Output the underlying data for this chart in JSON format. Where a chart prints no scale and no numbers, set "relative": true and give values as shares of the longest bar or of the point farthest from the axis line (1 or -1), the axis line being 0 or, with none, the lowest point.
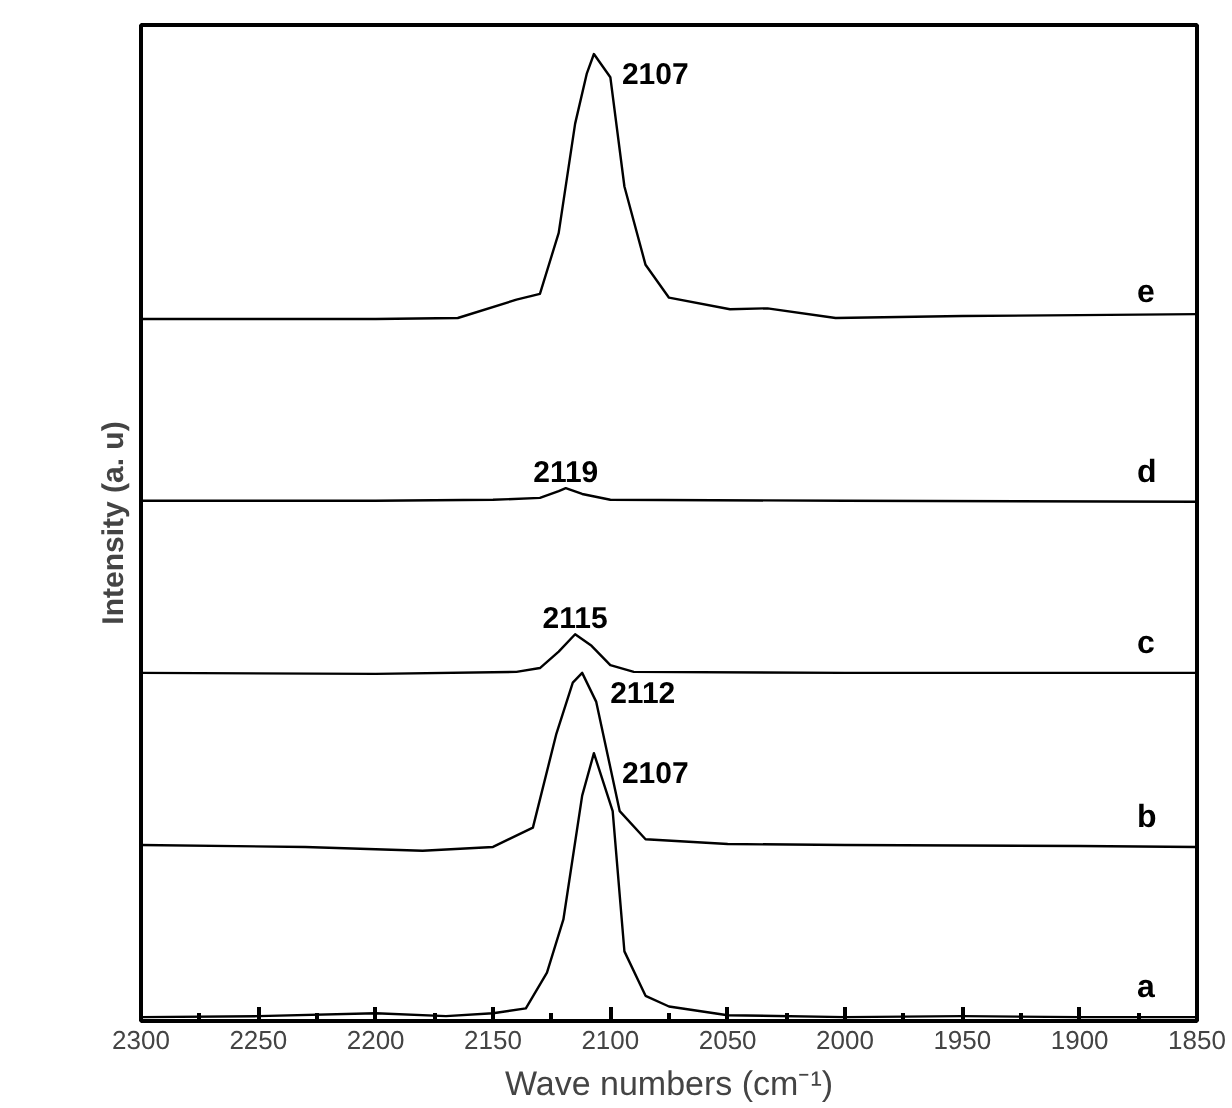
{
  "chart_data": {
    "type": "line",
    "relative": true,
    "xlabel": "Wave numbers (cm⁻¹)",
    "ylabel": "Intensity (a. u)",
    "xlim": [
      2300,
      1850
    ],
    "xticks": [
      2300,
      {
        "value": 2275,
        "label": null
      },
      2250,
      {
        "value": 2225,
        "label": null
      },
      2200,
      {
        "value": 2175,
        "label": null
      },
      2150,
      {
        "value": 2125,
        "label": null
      },
      2100,
      {
        "value": 2075,
        "label": null
      },
      2050,
      {
        "value": 2025,
        "label": null
      },
      2000,
      {
        "value": 1975,
        "label": null
      },
      1950,
      {
        "value": 1925,
        "label": null
      },
      1900,
      {
        "value": 1875,
        "label": null
      },
      1850
    ],
    "grid": false,
    "marker": "none",
    "line_style": "solid",
    "series": [
      {
        "name": "a",
        "color": "#000000",
        "x": [
          2300,
          2250,
          2200,
          2170,
          2150,
          2136,
          2127,
          2120,
          2112,
          2107,
          2099,
          2094,
          2085,
          2075,
          2050,
          2000,
          1950,
          1900,
          1850
        ],
        "values": [
          0.004,
          0.005,
          0.008,
          0.005,
          0.008,
          0.013,
          0.05,
          0.105,
          0.233,
          0.277,
          0.217,
          0.072,
          0.026,
          0.015,
          0.006,
          0.004,
          0.005,
          0.004,
          0.004
        ]
      },
      {
        "name": "b",
        "color": "#000000",
        "x": [
          2300,
          2230,
          2180,
          2150,
          2133,
          2123,
          2116,
          2112,
          2106,
          2096,
          2085,
          2050,
          2000,
          1900,
          1850
        ],
        "values": [
          0.182,
          0.18,
          0.176,
          0.18,
          0.2,
          0.297,
          0.35,
          0.36,
          0.33,
          0.217,
          0.188,
          0.183,
          0.182,
          0.181,
          0.18
        ]
      },
      {
        "name": "c",
        "color": "#000000",
        "x": [
          2300,
          2200,
          2140,
          2130,
          2122,
          2115,
          2108,
          2100,
          2090,
          2000,
          1850
        ],
        "values": [
          0.36,
          0.359,
          0.361,
          0.365,
          0.382,
          0.4,
          0.388,
          0.368,
          0.361,
          0.36,
          0.36
        ]
      },
      {
        "name": "d",
        "color": "#000000",
        "x": [
          2300,
          2200,
          2150,
          2130,
          2122,
          2119,
          2112,
          2100,
          2000,
          1850
        ],
        "values": [
          0.538,
          0.538,
          0.539,
          0.541,
          0.548,
          0.551,
          0.545,
          0.539,
          0.538,
          0.537
        ]
      },
      {
        "name": "e",
        "color": "#000000",
        "x": [
          2300,
          2200,
          2165,
          2140,
          2130,
          2122,
          2115,
          2110,
          2107,
          2100,
          2094,
          2085,
          2075,
          2049,
          2033,
          2004,
          1950,
          1900,
          1850
        ],
        "values": [
          0.726,
          0.726,
          0.727,
          0.746,
          0.752,
          0.815,
          0.928,
          0.98,
          1.0,
          0.976,
          0.863,
          0.782,
          0.748,
          0.736,
          0.737,
          0.727,
          0.729,
          0.73,
          0.731
        ]
      }
    ],
    "annotations": [
      {
        "text": "2107",
        "x": 2107,
        "y": 0.277
      },
      {
        "text": "2112",
        "x": 2112,
        "y": 0.36
      },
      {
        "text": "2115",
        "x": 2115,
        "y": 0.4
      },
      {
        "text": "2119",
        "x": 2119,
        "y": 0.551
      },
      {
        "text": "2107",
        "x": 2107,
        "y": 1.0
      }
    ]
  }
}
